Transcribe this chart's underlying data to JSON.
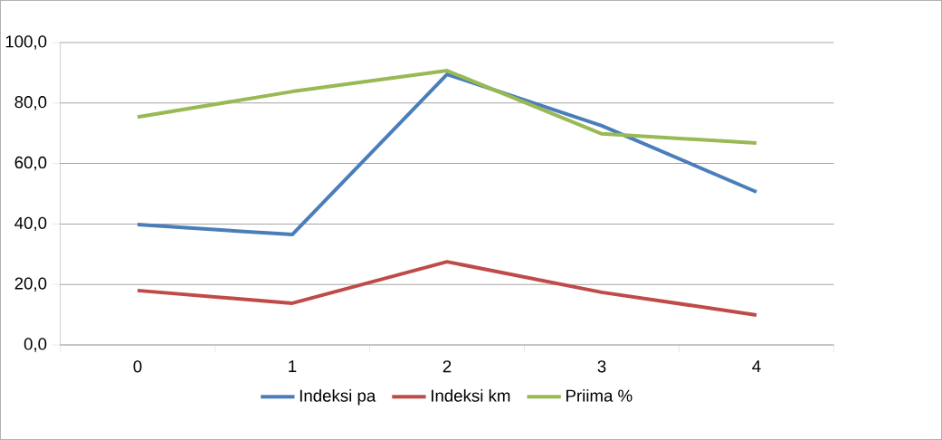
{
  "chart_data": {
    "type": "line",
    "categories": [
      "0",
      "1",
      "2",
      "3",
      "4"
    ],
    "series": [
      {
        "name": "Indeksi pa",
        "color": "#4a7ebb",
        "values": [
          39.8,
          36.5,
          89.5,
          72.5,
          50.6
        ]
      },
      {
        "name": "Indeksi  km",
        "color": "#be4b48",
        "values": [
          18.0,
          13.8,
          27.5,
          17.4,
          9.9
        ]
      },
      {
        "name": "Priima %",
        "color": "#98b954",
        "values": [
          75.4,
          83.8,
          90.7,
          69.8,
          66.8
        ]
      }
    ],
    "ylim": [
      0,
      100
    ],
    "yticks": [
      {
        "value": 0,
        "label": "0,0"
      },
      {
        "value": 20,
        "label": "20,0"
      },
      {
        "value": 40,
        "label": "40,0"
      },
      {
        "value": 60,
        "label": "60,0"
      },
      {
        "value": 80,
        "label": "80,0"
      },
      {
        "value": 100,
        "label": "100,0"
      }
    ],
    "grid": "y",
    "legend": "bottom",
    "marker": "none",
    "line_style": "solid"
  }
}
